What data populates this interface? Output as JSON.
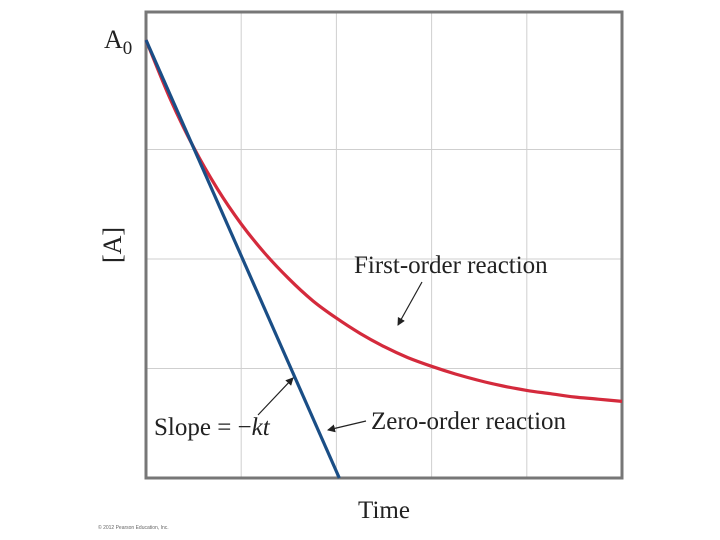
{
  "chart_data": {
    "type": "line",
    "title": "",
    "xlabel": "Time",
    "ylabel": "[A]",
    "y_tick_labels": [
      {
        "main": "A",
        "sub": "0"
      }
    ],
    "xlim": [
      0,
      5
    ],
    "ylim": [
      0,
      4
    ],
    "grid": true,
    "series": [
      {
        "name": "First-order reaction",
        "color": "#d42a3c",
        "x": [
          0,
          0.25,
          0.5,
          0.75,
          1,
          1.25,
          1.5,
          1.75,
          2,
          2.25,
          2.5,
          2.75,
          3,
          3.25,
          3.5,
          3.75,
          4,
          4.25,
          4.5,
          4.75,
          5
        ],
        "y": [
          4.0,
          3.47,
          3.02,
          2.64,
          2.32,
          2.05,
          1.82,
          1.62,
          1.46,
          1.32,
          1.2,
          1.1,
          1.02,
          0.95,
          0.89,
          0.84,
          0.8,
          0.77,
          0.74,
          0.72,
          0.7
        ]
      },
      {
        "name": "Zero-order reaction",
        "color": "#1a4e86",
        "x": [
          0,
          2.03
        ],
        "y": [
          4.0,
          0
        ]
      }
    ],
    "annotations": {
      "slope_prefix": "Slope = −",
      "slope_var": "kt"
    }
  },
  "footer": {
    "copyright": "© 2012 Pearson Education, Inc."
  }
}
